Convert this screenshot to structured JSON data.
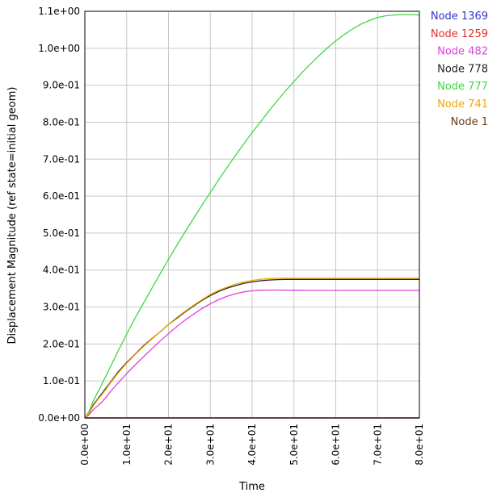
{
  "chart_data": {
    "type": "line",
    "xlabel": "Time",
    "ylabel": "Displacement Magnitude (ref state=initial geom)",
    "xlim": [
      0,
      80
    ],
    "ylim": [
      0,
      1.1
    ],
    "x_ticks": [
      "0.0e+00",
      "1.0e+01",
      "2.0e+01",
      "3.0e+01",
      "4.0e+01",
      "5.0e+01",
      "6.0e+01",
      "7.0e+01",
      "8.0e+01"
    ],
    "y_ticks": [
      "0.0e+00",
      "1.0e-01",
      "2.0e-01",
      "3.0e-01",
      "4.0e-01",
      "5.0e-01",
      "6.0e-01",
      "7.0e-01",
      "8.0e-01",
      "9.0e-01",
      "1.0e+00",
      "1.1e+00"
    ],
    "grid": true,
    "legend_position": "right",
    "x": [
      0,
      1,
      2,
      3,
      4,
      5,
      6,
      8,
      10,
      12,
      14,
      16,
      18,
      20,
      22,
      24,
      26,
      28,
      30,
      32,
      34,
      36,
      38,
      40,
      42,
      44,
      46,
      48,
      50,
      52,
      54,
      56,
      58,
      60,
      62,
      64,
      66,
      68,
      70,
      72,
      74,
      76,
      78,
      80
    ],
    "series": [
      {
        "name": "Node 1369",
        "color": "#3333cc",
        "values": [
          0,
          0,
          0,
          0,
          0,
          0,
          0,
          0,
          0,
          0,
          0,
          0,
          0,
          0,
          0,
          0,
          0,
          0,
          0,
          0,
          0,
          0,
          0,
          0,
          0,
          0,
          0,
          0,
          0,
          0,
          0,
          0,
          0,
          0,
          0,
          0,
          0,
          0,
          0,
          0,
          0,
          0,
          0,
          0
        ]
      },
      {
        "name": "Node 1259",
        "color": "#e62e2e",
        "values": [
          0,
          0,
          0,
          0,
          0,
          0,
          0,
          0,
          0,
          0,
          0,
          0,
          0,
          0,
          0,
          0,
          0,
          0,
          0,
          0,
          0,
          0,
          0,
          0,
          0,
          0,
          0,
          0,
          0,
          0,
          0,
          0,
          0,
          0,
          0,
          0,
          0,
          0,
          0,
          0,
          0,
          0,
          0,
          0
        ]
      },
      {
        "name": "Node 482",
        "color": "#e040e0",
        "values": [
          0,
          0.008,
          0.022,
          0.032,
          0.042,
          0.055,
          0.07,
          0.095,
          0.12,
          0.143,
          0.165,
          0.187,
          0.208,
          0.228,
          0.247,
          0.265,
          0.281,
          0.296,
          0.309,
          0.32,
          0.329,
          0.336,
          0.341,
          0.344,
          0.3455,
          0.346,
          0.346,
          0.3458,
          0.3455,
          0.3452,
          0.345,
          0.345,
          0.345,
          0.345,
          0.345,
          0.345,
          0.345,
          0.345,
          0.345,
          0.345,
          0.345,
          0.345,
          0.345,
          0.345
        ]
      },
      {
        "name": "Node 778",
        "color": "#222222",
        "values": [
          0,
          0.012,
          0.035,
          0.05,
          0.065,
          0.08,
          0.095,
          0.125,
          0.15,
          0.172,
          0.195,
          0.214,
          0.233,
          0.253,
          0.27,
          0.287,
          0.303,
          0.318,
          0.331,
          0.342,
          0.351,
          0.358,
          0.364,
          0.368,
          0.371,
          0.373,
          0.374,
          0.3745,
          0.3745,
          0.3745,
          0.3745,
          0.3745,
          0.3745,
          0.3745,
          0.3745,
          0.3745,
          0.3745,
          0.3745,
          0.3745,
          0.3745,
          0.3745,
          0.3745,
          0.3745,
          0.3745
        ]
      },
      {
        "name": "Node 777",
        "color": "#40d840",
        "values": [
          0,
          0.018,
          0.045,
          0.068,
          0.09,
          0.113,
          0.136,
          0.182,
          0.227,
          0.27,
          0.31,
          0.35,
          0.39,
          0.429,
          0.467,
          0.504,
          0.54,
          0.575,
          0.61,
          0.644,
          0.677,
          0.71,
          0.741,
          0.772,
          0.801,
          0.83,
          0.858,
          0.885,
          0.91,
          0.935,
          0.958,
          0.98,
          1.001,
          1.02,
          1.037,
          1.052,
          1.065,
          1.075,
          1.083,
          1.088,
          1.09,
          1.091,
          1.091,
          1.09
        ]
      },
      {
        "name": "Node 741",
        "color": "#f0a800",
        "values": [
          0,
          0.012,
          0.032,
          0.048,
          0.062,
          0.077,
          0.093,
          0.122,
          0.148,
          0.171,
          0.193,
          0.213,
          0.233,
          0.253,
          0.272,
          0.289,
          0.305,
          0.32,
          0.334,
          0.345,
          0.354,
          0.362,
          0.368,
          0.372,
          0.375,
          0.377,
          0.378,
          0.378,
          0.378,
          0.378,
          0.378,
          0.378,
          0.378,
          0.378,
          0.378,
          0.378,
          0.378,
          0.378,
          0.378,
          0.378,
          0.378,
          0.378,
          0.378,
          0.378
        ]
      },
      {
        "name": "Node 1",
        "color": "#6b3a10",
        "values": [
          0,
          0,
          0,
          0,
          0,
          0,
          0,
          0,
          0,
          0,
          0,
          0,
          0,
          0,
          0,
          0,
          0,
          0,
          0,
          0,
          0,
          0,
          0,
          0,
          0,
          0,
          0,
          0,
          0,
          0,
          0,
          0,
          0,
          0,
          0,
          0,
          0,
          0,
          0,
          0,
          0,
          0,
          0,
          0
        ]
      }
    ]
  }
}
